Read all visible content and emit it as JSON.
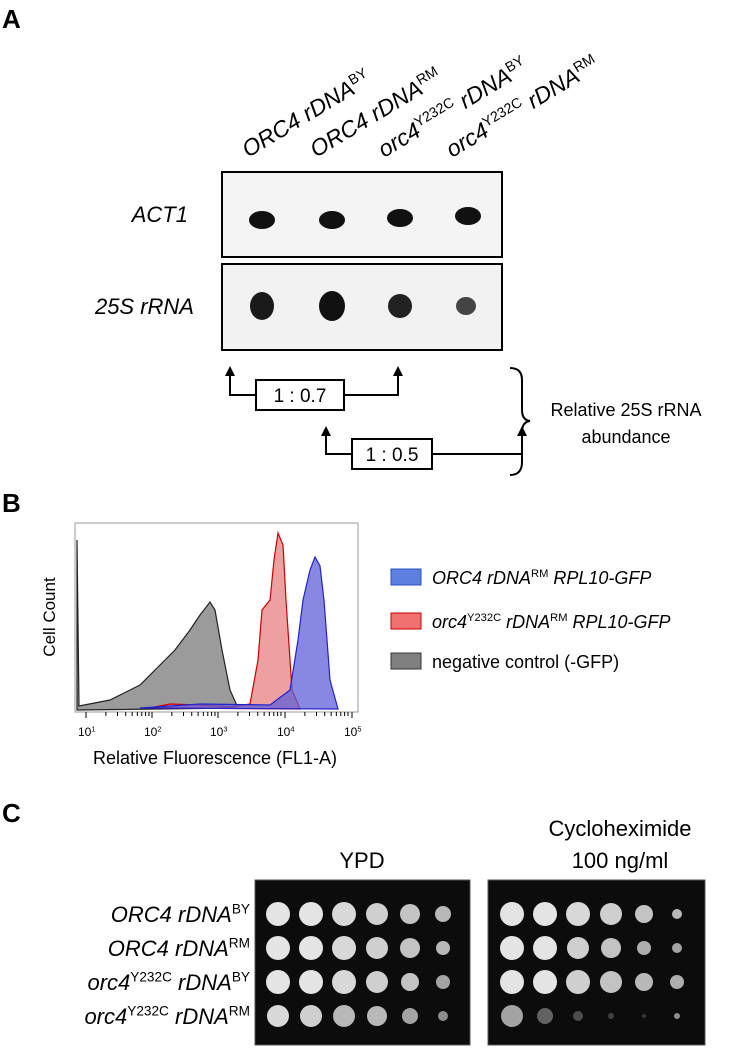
{
  "panel_a": {
    "label": "A",
    "lanes": [
      [
        "ORC4 rDNA",
        "BY"
      ],
      [
        "ORC4 rDNA",
        "RM"
      ],
      [
        "orc4",
        "Y232C",
        " rDNA",
        "BY"
      ],
      [
        "orc4",
        "Y232C",
        " rDNA",
        "RM"
      ]
    ],
    "blots": [
      "ACT1",
      "25S rRNA"
    ],
    "ratios": [
      "1 : 0.7",
      "1 : 0.5"
    ],
    "brace_label": [
      "Relative 25S rRNA",
      "abundance"
    ]
  },
  "panel_b": {
    "label": "B",
    "y_axis_label": "Cell Count",
    "x_axis_label": "Relative Fluorescence (FL1-A)",
    "x_ticks": [
      [
        "10",
        "1"
      ],
      [
        "10",
        "2"
      ],
      [
        "10",
        "3"
      ],
      [
        "10",
        "4"
      ],
      [
        "10",
        "5"
      ]
    ],
    "legend": [
      [
        "ORC4 rDNA",
        "RM",
        " RPL10-GFP"
      ],
      [
        "orc4",
        "Y232C",
        " rDNA",
        "RM",
        " RPL10-GFP"
      ],
      [
        "negative control (-GFP)"
      ]
    ]
  },
  "panel_c": {
    "label": "C",
    "plates": [
      "YPD",
      "Cycloheximide",
      "100 ng/ml"
    ],
    "rows": [
      [
        "ORC4 rDNA",
        "BY"
      ],
      [
        "ORC4 rDNA",
        "RM"
      ],
      [
        "orc4",
        "Y232C",
        " rDNA",
        "BY"
      ],
      [
        "orc4",
        "Y232C",
        " rDNA",
        "RM"
      ]
    ]
  }
}
